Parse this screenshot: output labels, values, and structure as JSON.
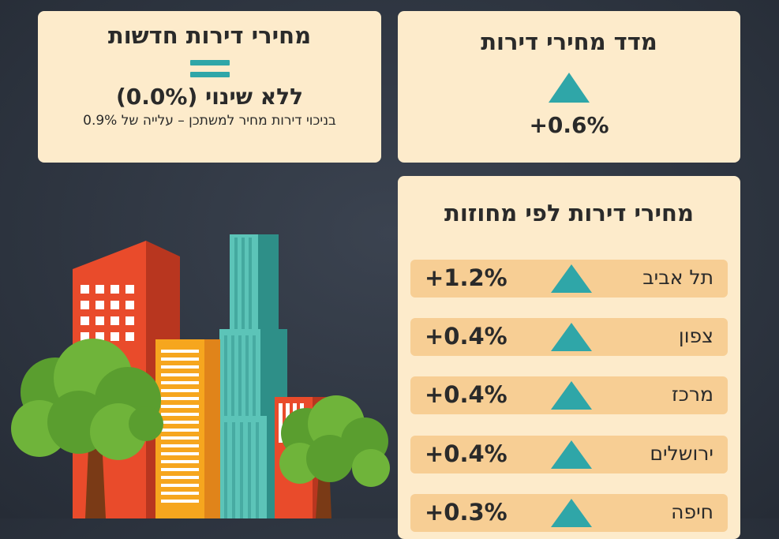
{
  "cards": {
    "new_apartments": {
      "title": "מחירי דירות חדשות",
      "change": "ללא שינוי (0.0%)",
      "note": "בניכוי דירות מחיר למשתכן – עלייה של 0.9%",
      "icon": "equals-icon"
    },
    "price_index": {
      "title": "מדד מחירי דירות",
      "change": "+0.6%",
      "icon": "triangle-up-icon"
    },
    "districts": {
      "title": "מחירי דירות לפי מחוזות",
      "rows": [
        {
          "name": "תל אביב",
          "change": "+1.2%"
        },
        {
          "name": "צפון",
          "change": "+0.4%"
        },
        {
          "name": "מרכז",
          "change": "+0.4%"
        },
        {
          "name": "ירושלים",
          "change": "+0.4%"
        },
        {
          "name": "חיפה",
          "change": "+0.3%"
        }
      ]
    }
  },
  "colors": {
    "background": "#2c333e",
    "card": "#fdebcb",
    "row": "#f7ce94",
    "accent_teal": "#2fa6a8",
    "text": "#2a2a2a"
  }
}
